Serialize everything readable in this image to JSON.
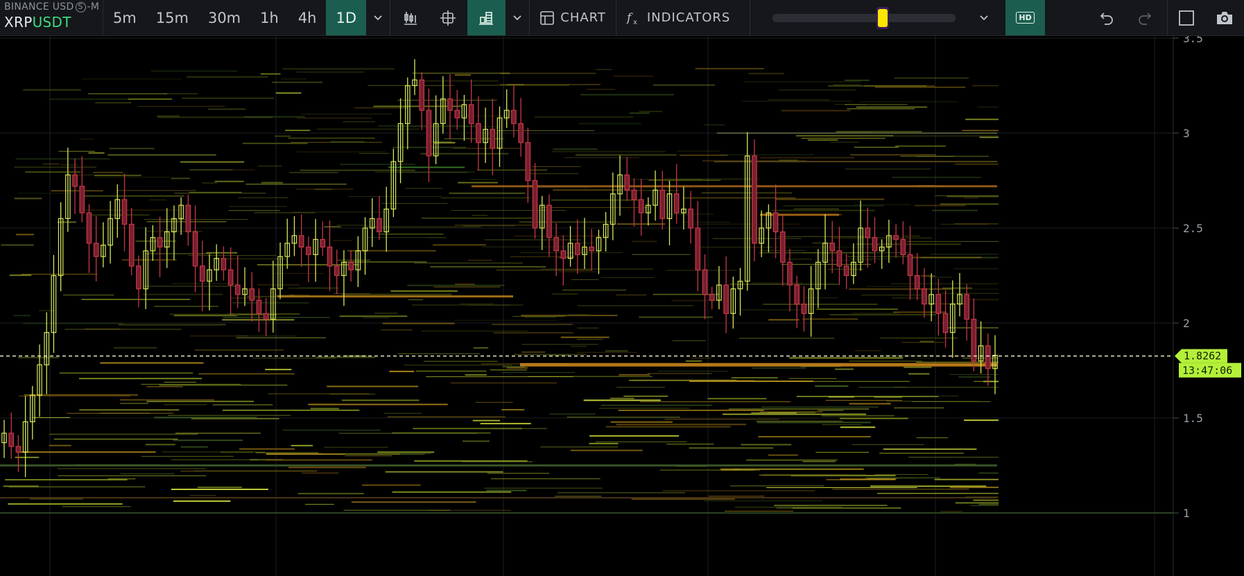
{
  "symbol": {
    "exchange_prefix": "BINANCE USD",
    "exchange_circle": "S",
    "exchange_suffix": "-M",
    "base": "XRP",
    "quote": "USDT"
  },
  "timeframes": [
    {
      "label": "5m",
      "active": false
    },
    {
      "label": "15m",
      "active": false
    },
    {
      "label": "30m",
      "active": false
    },
    {
      "label": "1h",
      "active": false
    },
    {
      "label": "4h",
      "active": false
    },
    {
      "label": "1D",
      "active": true
    }
  ],
  "toolbar": {
    "chart_label": "CHART",
    "indicators_label": "INDICATORS",
    "hd_label": "HD",
    "slider_value": 0.6
  },
  "icons": [
    "chevron-down-icon",
    "candles-icon",
    "crosshair-icon",
    "orderbook-heatmap-icon",
    "chart-icon",
    "fx-icon",
    "hd-icon",
    "undo-icon",
    "redo-icon",
    "square-icon",
    "camera-icon"
  ],
  "colors": {
    "accent": "#1b5e4f",
    "up": "#d8e85a",
    "down": "#c7384a",
    "price_tag": "#b4f03a",
    "slider_thumb": "#ffe600"
  },
  "chart_data": {
    "type": "candlestick",
    "y_ticks": [
      "3.5",
      "3",
      "2.5",
      "2",
      "1.5",
      "1"
    ],
    "ylim": [
      0.7,
      3.5
    ],
    "grid": true,
    "last_price": "1.8262",
    "countdown": "13:47:06",
    "overlay": "order book liquidity heatmap",
    "series_close": [
      1.42,
      1.35,
      1.32,
      1.48,
      1.62,
      1.78,
      1.95,
      2.25,
      2.55,
      2.78,
      2.72,
      2.58,
      2.42,
      2.35,
      2.41,
      2.55,
      2.65,
      2.52,
      2.3,
      2.18,
      2.38,
      2.45,
      2.4,
      2.48,
      2.55,
      2.62,
      2.48,
      2.3,
      2.22,
      2.28,
      2.34,
      2.28,
      2.2,
      2.15,
      2.18,
      2.12,
      2.05,
      2.02,
      2.18,
      2.35,
      2.42,
      2.46,
      2.4,
      2.36,
      2.44,
      2.4,
      2.3,
      2.25,
      2.32,
      2.28,
      2.38,
      2.5,
      2.55,
      2.48,
      2.6,
      2.85,
      3.05,
      3.25,
      3.28,
      3.12,
      2.88,
      3.05,
      3.18,
      3.12,
      3.08,
      3.15,
      3.05,
      2.95,
      3.02,
      2.92,
      3.08,
      3.12,
      3.05,
      2.95,
      2.75,
      2.5,
      2.62,
      2.45,
      2.38,
      2.34,
      2.42,
      2.36,
      2.4,
      2.38,
      2.45,
      2.52,
      2.68,
      2.78,
      2.7,
      2.65,
      2.58,
      2.62,
      2.7,
      2.55,
      2.68,
      2.58,
      2.6,
      2.5,
      2.28,
      2.15,
      2.12,
      2.2,
      2.05,
      2.18,
      2.22,
      2.88,
      2.42,
      2.5,
      2.58,
      2.48,
      2.32,
      2.2,
      2.1,
      2.05,
      2.18,
      2.32,
      2.42,
      2.38,
      2.3,
      2.25,
      2.32,
      2.5,
      2.45,
      2.38,
      2.4,
      2.46,
      2.44,
      2.36,
      2.25,
      2.18,
      2.1,
      2.15,
      2.05,
      1.95,
      2.1,
      2.15,
      2.02,
      1.8,
      1.88,
      1.76,
      1.83
    ]
  }
}
